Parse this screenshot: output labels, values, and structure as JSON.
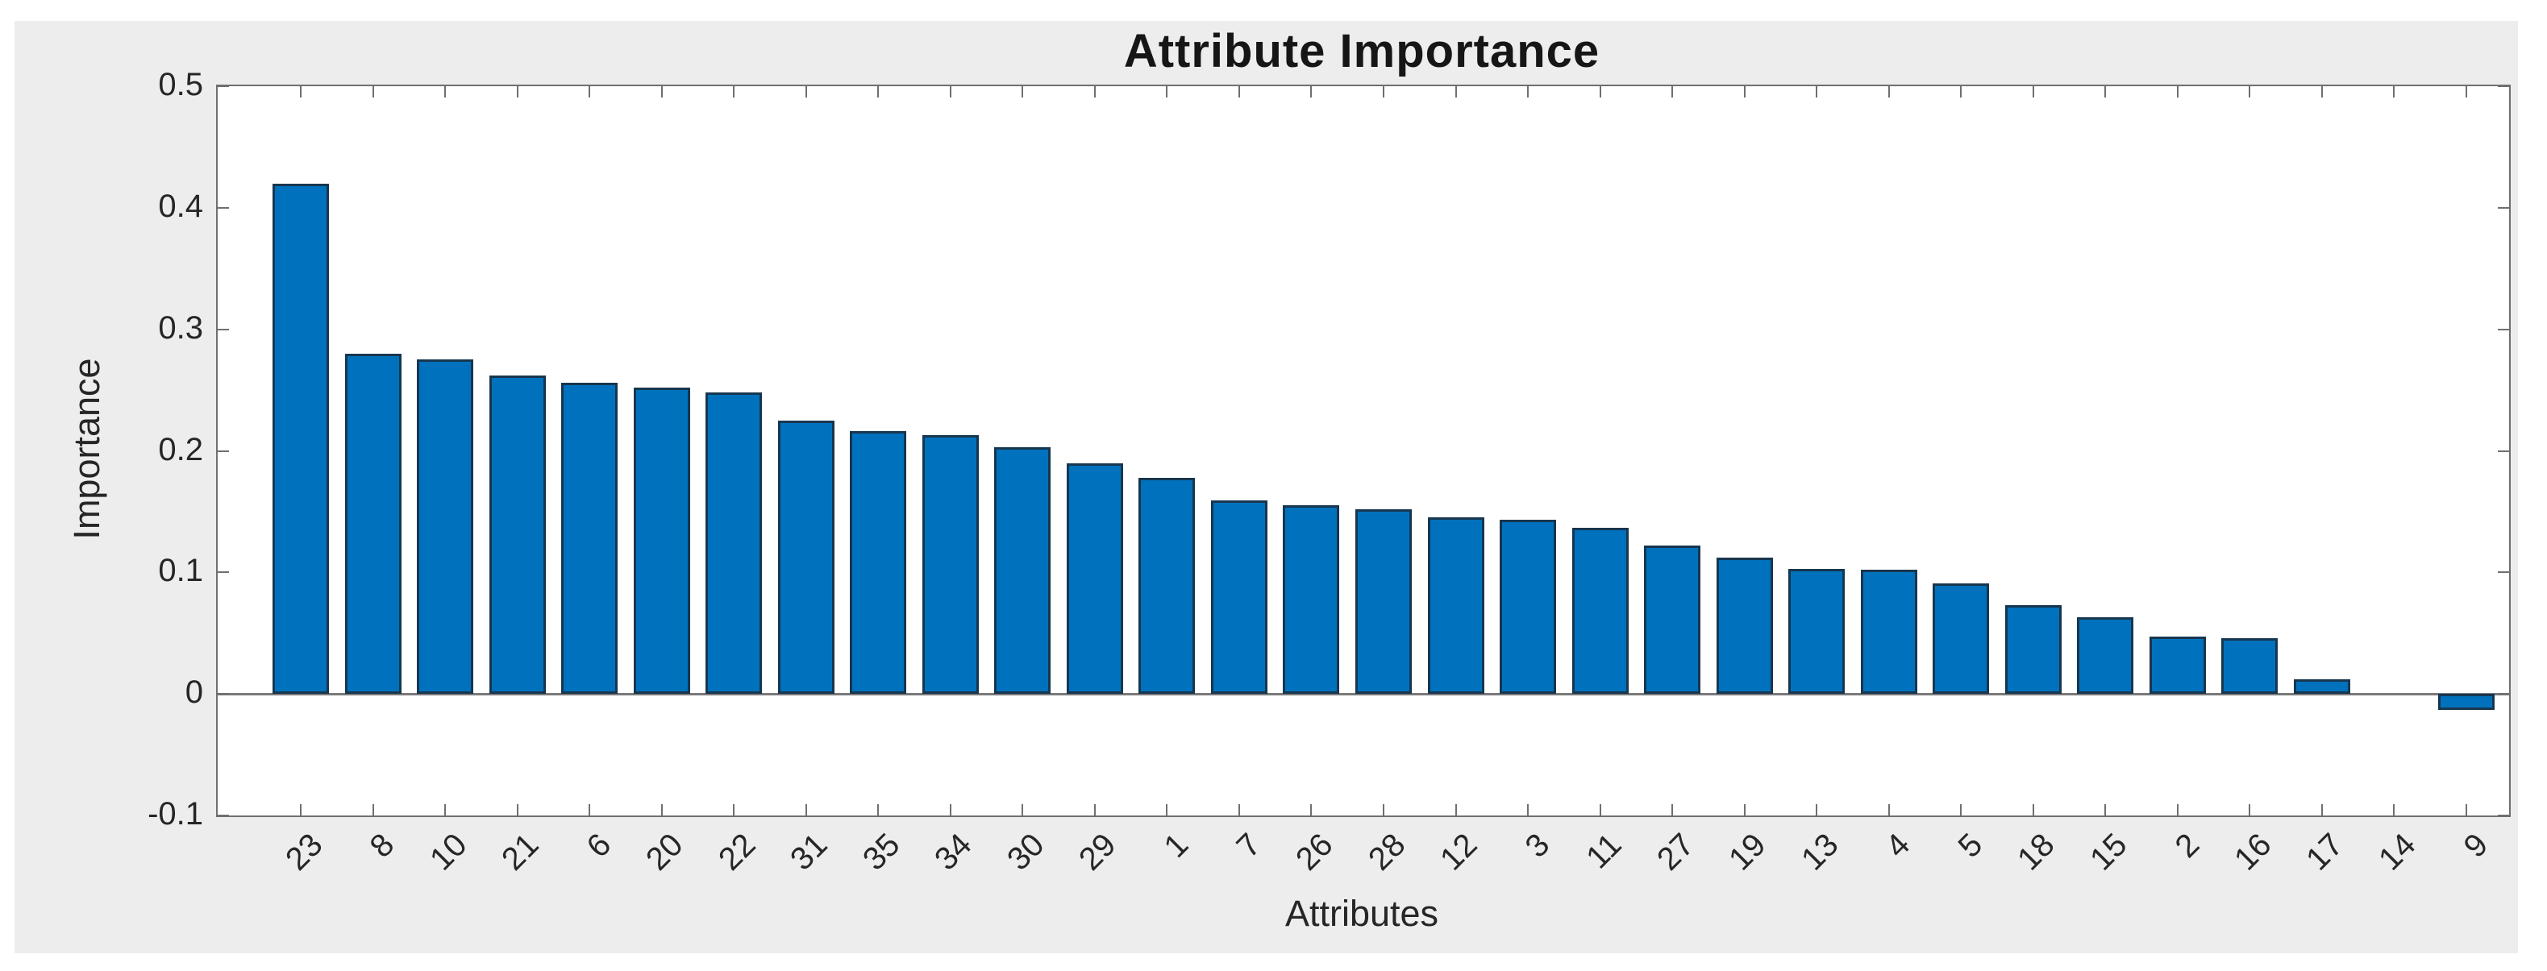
{
  "chart_data": {
    "type": "bar",
    "title": "Attribute Importance",
    "xlabel": "Attributes",
    "ylabel": "Importance",
    "categories": [
      "23",
      "8",
      "10",
      "21",
      "6",
      "20",
      "22",
      "31",
      "35",
      "34",
      "30",
      "29",
      "1",
      "7",
      "26",
      "28",
      "12",
      "3",
      "11",
      "27",
      "19",
      "13",
      "4",
      "5",
      "18",
      "15",
      "2",
      "16",
      "17",
      "14",
      "9"
    ],
    "values": [
      0.42,
      0.28,
      0.275,
      0.262,
      0.256,
      0.252,
      0.248,
      0.225,
      0.216,
      0.213,
      0.203,
      0.19,
      0.178,
      0.159,
      0.155,
      0.152,
      0.145,
      0.143,
      0.137,
      0.122,
      0.112,
      0.103,
      0.102,
      0.091,
      0.073,
      0.063,
      0.047,
      0.046,
      0.012,
      0.001,
      -0.013
    ],
    "ylim": [
      -0.1,
      0.5
    ],
    "yticks": [
      -0.1,
      0,
      0.1,
      0.2,
      0.3,
      0.4,
      0.5
    ],
    "ytick_labels": [
      "-0.1",
      "0",
      "0.1",
      "0.2",
      "0.3",
      "0.4",
      "0.5"
    ],
    "grid": false,
    "legend_position": "none",
    "bar_width_ratio": 0.8,
    "x_tick_label_rotation_deg": 45
  },
  "colors": {
    "figure_background": "#eeeded",
    "plot_background": "#ffffff",
    "axis": "#6f6f6f",
    "tick_text": "#262626",
    "title_text": "#161616",
    "baseline": "#7a7a7a",
    "bar_fill": "#0072bd",
    "bar_edge": "#17364f"
  }
}
